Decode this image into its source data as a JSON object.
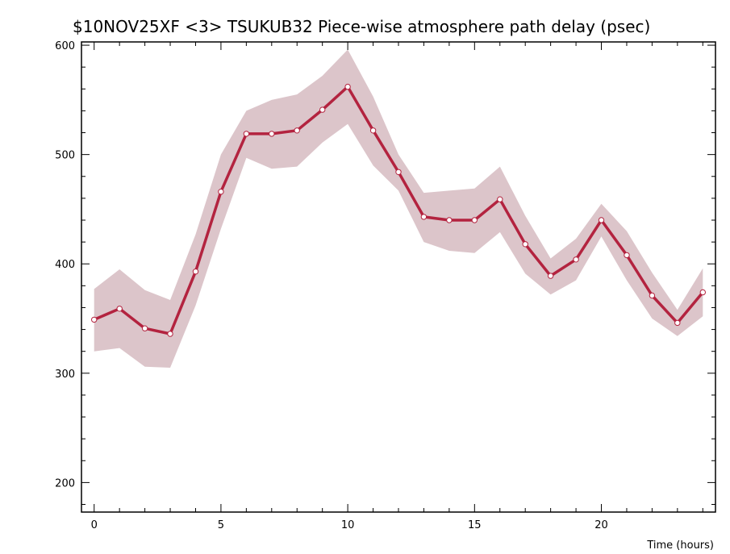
{
  "chart_data": {
    "type": "line",
    "title": "$10NOV25XF <3>  TSUKUB32  Piece-wise atmosphere path delay (psec)",
    "xlabel": "Time (hours)",
    "ylabel": "",
    "xlim": [
      -0.5,
      24.5
    ],
    "ylim": [
      173,
      603
    ],
    "x_ticks": [
      0,
      5,
      10,
      15,
      20
    ],
    "x_tick_labels": [
      "0",
      "5",
      "10",
      "15",
      "20"
    ],
    "y_ticks": [
      200,
      300,
      400,
      500,
      600
    ],
    "y_tick_labels": [
      "200",
      "300",
      "400",
      "500",
      "600"
    ],
    "grid": false,
    "colors": {
      "line": "#b3233f",
      "band": "#dcc5ca",
      "marker_fill": "#ffffff"
    },
    "series": [
      {
        "x": [
          0,
          1,
          2,
          3,
          4,
          5,
          6,
          7,
          8,
          9,
          10,
          11,
          12,
          13,
          14,
          15,
          16,
          17,
          18,
          19,
          20,
          21,
          22,
          23,
          24
        ],
        "values": [
          349,
          359,
          341,
          336,
          393,
          466,
          519,
          519,
          522,
          541,
          562,
          522,
          484,
          443,
          440,
          440,
          459,
          418,
          389,
          404,
          440,
          408,
          371,
          346,
          374
        ],
        "upper": [
          377,
          395,
          376,
          367,
          427,
          500,
          540,
          550,
          555,
          572,
          596,
          553,
          500,
          465,
          467,
          469,
          489,
          444,
          405,
          423,
          455,
          430,
          392,
          358,
          396
        ],
        "lower": [
          320,
          323,
          306,
          305,
          362,
          432,
          497,
          487,
          489,
          511,
          528,
          490,
          467,
          420,
          412,
          410,
          429,
          391,
          372,
          385,
          425,
          385,
          350,
          334,
          352
        ]
      }
    ]
  }
}
